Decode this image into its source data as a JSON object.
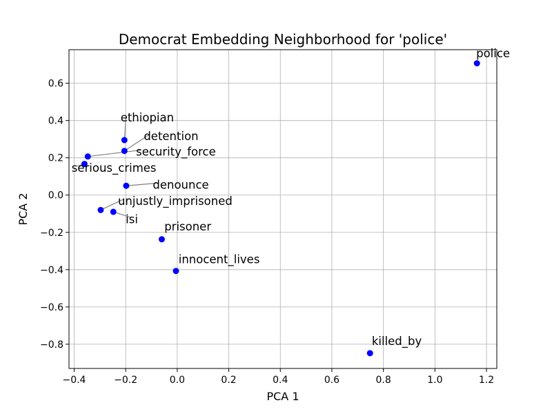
{
  "chart_data": {
    "type": "scatter",
    "title": "Democrat Embedding Neighborhood for 'police'",
    "xlabel": "PCA 1",
    "ylabel": "PCA 2",
    "xlim": [
      -0.42,
      1.24
    ],
    "ylim": [
      -0.93,
      0.78
    ],
    "xticks": [
      -0.4,
      -0.2,
      0.0,
      0.2,
      0.4,
      0.6,
      0.8,
      1.0,
      1.2
    ],
    "xtick_labels": [
      "−0.4",
      "−0.2",
      "0.0",
      "0.2",
      "0.4",
      "0.6",
      "0.8",
      "1.0",
      "1.2"
    ],
    "yticks": [
      -0.8,
      -0.6,
      -0.4,
      -0.2,
      0.0,
      0.2,
      0.4,
      0.6
    ],
    "ytick_labels": [
      "−0.8",
      "−0.6",
      "−0.4",
      "−0.2",
      "0.0",
      "0.2",
      "0.4",
      "0.6"
    ],
    "grid": true,
    "point_color": "#0000ff",
    "points": [
      {
        "label": "police",
        "x": 1.163,
        "y": 0.707,
        "lx": 1.16,
        "ly": 0.74
      },
      {
        "label": "ethiopian",
        "x": -0.205,
        "y": 0.295,
        "lx": -0.22,
        "ly": 0.395
      },
      {
        "label": "detention",
        "x": -0.205,
        "y": 0.237,
        "lx": -0.13,
        "ly": 0.295
      },
      {
        "label": "security_force",
        "x": -0.347,
        "y": 0.207,
        "lx": -0.16,
        "ly": 0.212
      },
      {
        "label": "serious_crimes",
        "x": -0.36,
        "y": 0.167,
        "lx": -0.41,
        "ly": 0.125
      },
      {
        "label": "denounce",
        "x": -0.198,
        "y": 0.05,
        "lx": -0.095,
        "ly": 0.035
      },
      {
        "label": "unjustly_imprisoned",
        "x": -0.297,
        "y": -0.08,
        "lx": -0.23,
        "ly": -0.052
      },
      {
        "label": "isi",
        "x": -0.248,
        "y": -0.09,
        "lx": -0.2,
        "ly": -0.15
      },
      {
        "label": "prisoner",
        "x": -0.06,
        "y": -0.237,
        "lx": -0.05,
        "ly": -0.19
      },
      {
        "label": "innocent_lives",
        "x": -0.005,
        "y": -0.407,
        "lx": 0.005,
        "ly": -0.365
      },
      {
        "label": "killed_by",
        "x": 0.748,
        "y": -0.848,
        "lx": 0.755,
        "ly": -0.805
      }
    ]
  }
}
